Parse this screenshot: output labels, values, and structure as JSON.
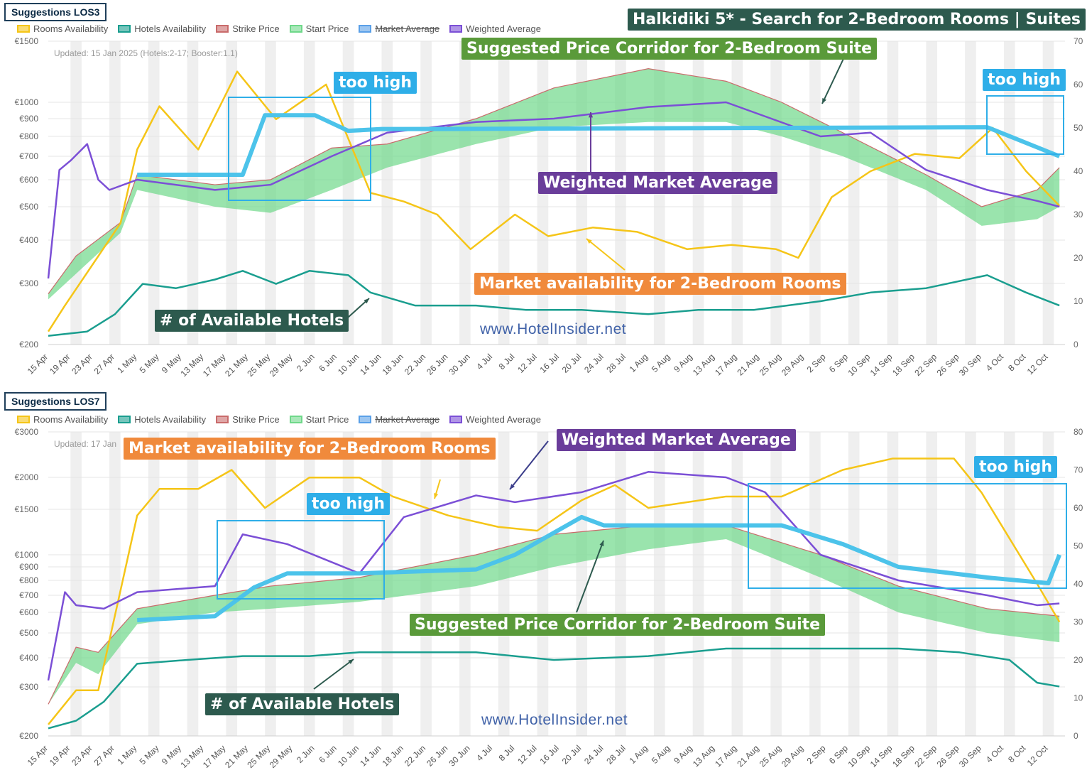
{
  "header": {
    "headline": "Halkidiki 5* - Search for 2-Bedroom Rooms | Suites",
    "headline_color": "#2d5a4e"
  },
  "legend": [
    {
      "label": "Rooms Availability",
      "color": "#f5c518",
      "struck": false
    },
    {
      "label": "Hotels Availability",
      "color": "#1a9e8f",
      "struck": false
    },
    {
      "label": "Strike Price",
      "color": "#c96b6b",
      "struck": false
    },
    {
      "label": "Start Price",
      "color": "#6fd88a",
      "struck": false
    },
    {
      "label": "Market Average",
      "color": "#5aa0e8",
      "struck": true
    },
    {
      "label": "Weighted Average",
      "color": "#7b4fd6",
      "struck": false
    }
  ],
  "x_ticks": [
    "15 Apr",
    "19 Apr",
    "23 Apr",
    "27 Apr",
    "1 May",
    "5 May",
    "9 May",
    "13 May",
    "17 May",
    "21 May",
    "25 May",
    "29 May",
    "2 Jun",
    "6 Jun",
    "10 Jun",
    "14 Jun",
    "18 Jun",
    "22 Jun",
    "26 Jun",
    "30 Jun",
    "4 Jul",
    "8 Jul",
    "12 Jul",
    "16 Jul",
    "20 Jul",
    "24 Jul",
    "28 Jul",
    "1 Aug",
    "5 Aug",
    "9 Aug",
    "13 Aug",
    "17 Aug",
    "21 Aug",
    "25 Aug",
    "29 Aug",
    "2 Sep",
    "6 Sep",
    "10 Sep",
    "14 Sep",
    "18 Sep",
    "22 Sep",
    "26 Sep",
    "30 Sep",
    "4 Oct",
    "8 Oct",
    "12 Oct"
  ],
  "watermark": "www.HotelInsider.net",
  "panels": [
    {
      "title": "Suggestions LOS3",
      "updated": "Updated: 15 Jan 2025 (Hotels:2-17; Booster:1.1)",
      "left_ticks": [
        "€1500",
        "€1000",
        "€900",
        "€800",
        "€700",
        "€600",
        "€500",
        "€400",
        "€300",
        "€200"
      ],
      "right_ticks": [
        "70",
        "60",
        "50",
        "40",
        "30",
        "20",
        "10",
        "0"
      ],
      "callouts": [
        {
          "text": "Suggested Price Corridor for 2-Bedroom Suite",
          "color": "#5a9a3a"
        },
        {
          "text": "too high",
          "color": "#2eaee8"
        },
        {
          "text": "too high",
          "color": "#2eaee8"
        },
        {
          "text": "Weighted Market Average",
          "color": "#6a3d9a"
        },
        {
          "text": "Market availability for 2-Bedroom Rooms",
          "color": "#f08a3c"
        },
        {
          "text": "# of Available Hotels",
          "color": "#2d5a4e"
        }
      ]
    },
    {
      "title": "Suggestions LOS7",
      "updated": "Updated: 17 Jan",
      "left_ticks": [
        "€3000",
        "€2000",
        "€1500",
        "€1000",
        "€900",
        "€800",
        "€700",
        "€600",
        "€500",
        "€400",
        "€300",
        "€200"
      ],
      "right_ticks": [
        "80",
        "70",
        "60",
        "50",
        "40",
        "30",
        "20",
        "10",
        "0"
      ],
      "callouts": [
        {
          "text": "Market availability for 2-Bedroom Rooms",
          "color": "#f08a3c"
        },
        {
          "text": "Weighted Market Average",
          "color": "#6a3d9a"
        },
        {
          "text": "too high",
          "color": "#2eaee8"
        },
        {
          "text": "too high",
          "color": "#2eaee8"
        },
        {
          "text": "Suggested Price Corridor for 2-Bedroom Suite",
          "color": "#5a9a3a"
        },
        {
          "text": "# of Available Hotels",
          "color": "#2d5a4e"
        }
      ]
    }
  ],
  "chart_data": [
    {
      "type": "line",
      "title": "Suggestions LOS3",
      "x_range": [
        "15 Apr",
        "14 Oct"
      ],
      "y_left_ticks_eur": [
        200,
        300,
        400,
        500,
        600,
        700,
        800,
        900,
        1000,
        1500
      ],
      "y_left_scale": "log",
      "y_right_range": [
        0,
        70
      ],
      "series": [
        {
          "name": "Rooms Availability",
          "axis": "right",
          "x": [
            "15 Apr",
            "18 Apr",
            "28 Apr",
            "1 May",
            "5 May",
            "12 May",
            "19 May",
            "26 May",
            "4 Jun",
            "12 Jun",
            "18 Jun",
            "24 Jun",
            "30 Jun",
            "8 Jul",
            "14 Jul",
            "22 Jul",
            "30 Jul",
            "8 Aug",
            "16 Aug",
            "24 Aug",
            "28 Aug",
            "3 Sep",
            "10 Sep",
            "18 Sep",
            "26 Sep",
            "2 Oct",
            "8 Oct",
            "14 Oct"
          ],
          "values": [
            3,
            9,
            28,
            45,
            55,
            45,
            63,
            52,
            60,
            35,
            33,
            30,
            22,
            30,
            25,
            27,
            26,
            22,
            23,
            22,
            20,
            34,
            40,
            44,
            43,
            50,
            40,
            32
          ]
        },
        {
          "name": "Hotels Availability",
          "axis": "right",
          "x": [
            "15 Apr",
            "22 Apr",
            "27 Apr",
            "2 May",
            "8 May",
            "15 May",
            "20 May",
            "26 May",
            "1 Jun",
            "8 Jun",
            "12 Jun",
            "20 Jun",
            "1 Jul",
            "10 Jul",
            "20 Jul",
            "1 Aug",
            "10 Aug",
            "20 Aug",
            "1 Sep",
            "10 Sep",
            "20 Sep",
            "1 Oct",
            "8 Oct",
            "14 Oct"
          ],
          "values": [
            2,
            3,
            7,
            14,
            13,
            15,
            17,
            14,
            17,
            16,
            12,
            9,
            9,
            8,
            8,
            7,
            8,
            8,
            10,
            12,
            13,
            16,
            12,
            9
          ]
        },
        {
          "name": "Strike Price",
          "axis": "left",
          "x": [
            "15 Apr",
            "20 Apr",
            "28 Apr",
            "1 May",
            "15 May",
            "25 May",
            "5 Jun",
            "15 Jun",
            "1 Jul",
            "15 Jul",
            "1 Aug",
            "15 Aug",
            "25 Aug",
            "5 Sep",
            "20 Sep",
            "30 Sep",
            "10 Oct",
            "14 Oct"
          ],
          "values": [
            280,
            360,
            450,
            620,
            580,
            600,
            740,
            760,
            900,
            1100,
            1250,
            1150,
            1000,
            820,
            620,
            500,
            560,
            650
          ]
        },
        {
          "name": "Start Price",
          "axis": "left",
          "x": [
            "15 Apr",
            "20 Apr",
            "28 Apr",
            "1 May",
            "15 May",
            "25 May",
            "5 Jun",
            "15 Jun",
            "1 Jul",
            "15 Jul",
            "1 Aug",
            "15 Aug",
            "25 Aug",
            "5 Sep",
            "20 Sep",
            "30 Sep",
            "10 Oct",
            "14 Oct"
          ],
          "values": [
            270,
            320,
            420,
            560,
            500,
            480,
            560,
            650,
            760,
            850,
            880,
            880,
            800,
            700,
            560,
            440,
            460,
            500
          ]
        },
        {
          "name": "Weighted Average",
          "axis": "left",
          "x": [
            "15 Apr",
            "17 Apr",
            "19 Apr",
            "22 Apr",
            "24 Apr",
            "26 Apr",
            "1 May",
            "15 May",
            "25 May",
            "5 Jun",
            "15 Jun",
            "1 Jul",
            "15 Jul",
            "1 Aug",
            "15 Aug",
            "1 Sep",
            "10 Sep",
            "20 Sep",
            "1 Oct",
            "10 Oct",
            "14 Oct"
          ],
          "values": [
            310,
            640,
            680,
            760,
            600,
            560,
            600,
            560,
            580,
            700,
            820,
            880,
            900,
            970,
            1000,
            800,
            820,
            640,
            560,
            520,
            500
          ]
        },
        {
          "name": "Suggested (too high) LOS3",
          "axis": "left",
          "x": [
            "1 May",
            "15 May",
            "20 May",
            "24 May",
            "2 Jun",
            "8 Jun",
            "14 Jun",
            "18 Jun",
            "1 Oct",
            "14 Oct"
          ],
          "values": [
            620,
            620,
            620,
            920,
            920,
            830,
            840,
            840,
            850,
            700
          ]
        }
      ]
    },
    {
      "type": "line",
      "title": "Suggestions LOS7",
      "x_range": [
        "15 Apr",
        "14 Oct"
      ],
      "y_left_ticks_eur": [
        200,
        300,
        400,
        500,
        600,
        700,
        800,
        900,
        1000,
        1500,
        2000,
        3000
      ],
      "y_left_scale": "log",
      "y_right_range": [
        0,
        80
      ],
      "series": [
        {
          "name": "Rooms Availability",
          "axis": "right",
          "x": [
            "15 Apr",
            "20 Apr",
            "24 Apr",
            "1 May",
            "5 May",
            "12 May",
            "18 May",
            "24 May",
            "1 Jun",
            "10 Jun",
            "16 Jun",
            "26 Jun",
            "5 Jul",
            "12 Jul",
            "20 Jul",
            "26 Jul",
            "1 Aug",
            "15 Aug",
            "25 Aug",
            "5 Sep",
            "14 Sep",
            "25 Sep",
            "30 Sep",
            "5 Oct",
            "10 Oct",
            "14 Oct"
          ],
          "values": [
            3,
            12,
            12,
            58,
            65,
            65,
            70,
            60,
            68,
            68,
            63,
            58,
            55,
            54,
            62,
            66,
            60,
            63,
            63,
            70,
            73,
            73,
            64,
            52,
            40,
            30
          ]
        },
        {
          "name": "Hotels Availability",
          "axis": "right",
          "x": [
            "15 Apr",
            "20 Apr",
            "25 Apr",
            "1 May",
            "10 May",
            "20 May",
            "1 Jun",
            "10 Jun",
            "20 Jun",
            "1 Jul",
            "15 Jul",
            "1 Aug",
            "15 Aug",
            "1 Sep",
            "15 Sep",
            "26 Sep",
            "5 Oct",
            "10 Oct",
            "14 Oct"
          ],
          "values": [
            2,
            4,
            9,
            19,
            20,
            21,
            21,
            22,
            22,
            22,
            20,
            21,
            23,
            23,
            23,
            22,
            20,
            14,
            13
          ]
        },
        {
          "name": "Strike Price",
          "axis": "left",
          "x": [
            "15 Apr",
            "20 Apr",
            "24 Apr",
            "1 May",
            "15 May",
            "25 May",
            "10 Jun",
            "1 Jul",
            "15 Jul",
            "1 Aug",
            "15 Aug",
            "1 Sep",
            "15 Sep",
            "1 Oct",
            "14 Oct"
          ],
          "values": [
            260,
            440,
            420,
            620,
            700,
            760,
            820,
            1000,
            1200,
            1300,
            1300,
            1000,
            760,
            620,
            580
          ]
        },
        {
          "name": "Start Price",
          "axis": "left",
          "x": [
            "15 Apr",
            "20 Apr",
            "24 Apr",
            "1 May",
            "15 May",
            "25 May",
            "10 Jun",
            "1 Jul",
            "15 Jul",
            "1 Aug",
            "15 Aug",
            "1 Sep",
            "15 Sep",
            "1 Oct",
            "14 Oct"
          ],
          "values": [
            260,
            380,
            340,
            540,
            600,
            620,
            660,
            760,
            900,
            1050,
            1150,
            820,
            600,
            500,
            460
          ]
        },
        {
          "name": "Weighted Average",
          "axis": "left",
          "x": [
            "15 Apr",
            "18 Apr",
            "20 Apr",
            "25 Apr",
            "1 May",
            "15 May",
            "20 May",
            "28 May",
            "10 Jun",
            "18 Jun",
            "1 Jul",
            "8 Jul",
            "20 Jul",
            "1 Aug",
            "15 Aug",
            "22 Aug",
            "1 Sep",
            "15 Sep",
            "1 Oct",
            "10 Oct",
            "14 Oct"
          ],
          "values": [
            320,
            720,
            640,
            620,
            720,
            760,
            1200,
            1100,
            850,
            1400,
            1700,
            1600,
            1750,
            2100,
            2000,
            1750,
            1000,
            800,
            700,
            640,
            650
          ]
        },
        {
          "name": "Suggested (too high) LOS7",
          "axis": "left",
          "x": [
            "1 May",
            "15 May",
            "22 May",
            "28 May",
            "10 Jun",
            "1 Jul",
            "8 Jul",
            "20 Jul",
            "24 Jul",
            "15 Aug",
            "25 Aug",
            "5 Sep",
            "15 Sep",
            "1 Oct",
            "12 Oct",
            "14 Oct"
          ],
          "values": [
            560,
            580,
            750,
            850,
            850,
            880,
            1000,
            1400,
            1300,
            1300,
            1300,
            1100,
            900,
            820,
            780,
            1000
          ]
        }
      ]
    }
  ]
}
